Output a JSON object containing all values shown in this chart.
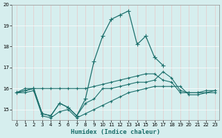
{
  "xlabel": "Humidex (Indice chaleur)",
  "background_color": "#d6eeee",
  "grid_color": "#c8dede",
  "line_color": "#1a6e6a",
  "x_values": [
    0,
    1,
    2,
    3,
    4,
    5,
    6,
    7,
    8,
    9,
    10,
    11,
    12,
    13,
    14,
    15,
    16,
    17,
    18,
    19,
    20,
    21,
    22,
    23
  ],
  "series_high": [
    15.8,
    15.9,
    16.0,
    14.8,
    14.7,
    15.3,
    15.1,
    14.7,
    15.5,
    17.3,
    18.5,
    19.3,
    19.5,
    19.7,
    18.1,
    18.5,
    17.5,
    17.1,
    null,
    null,
    null,
    null,
    null,
    null
  ],
  "series_upper": [
    15.8,
    16.0,
    16.0,
    16.0,
    16.0,
    16.0,
    16.0,
    16.0,
    16.0,
    16.1,
    16.2,
    16.3,
    16.4,
    16.5,
    16.6,
    16.7,
    16.7,
    16.4,
    16.3,
    15.8,
    15.8,
    15.8,
    15.9,
    15.9
  ],
  "series_mid": [
    15.8,
    15.9,
    16.0,
    14.8,
    14.7,
    15.3,
    15.1,
    14.7,
    15.3,
    15.5,
    16.0,
    16.0,
    16.1,
    16.2,
    16.3,
    16.3,
    16.4,
    16.8,
    16.5,
    15.9,
    15.8,
    15.8,
    15.8,
    15.9
  ],
  "series_low": [
    15.8,
    15.8,
    15.9,
    14.7,
    14.6,
    14.9,
    15.0,
    14.6,
    14.8,
    15.0,
    15.2,
    15.4,
    15.6,
    15.8,
    15.9,
    16.0,
    16.1,
    16.1,
    16.1,
    16.1,
    15.7,
    15.7,
    15.8,
    15.8
  ],
  "ylim": [
    14.5,
    20.0
  ],
  "xlim": [
    -0.5,
    23.5
  ],
  "yticks": [
    15,
    16,
    17,
    18,
    19,
    20
  ],
  "xticks": [
    0,
    1,
    2,
    3,
    4,
    5,
    6,
    7,
    8,
    9,
    10,
    11,
    12,
    13,
    14,
    15,
    16,
    17,
    18,
    19,
    20,
    21,
    22,
    23
  ]
}
